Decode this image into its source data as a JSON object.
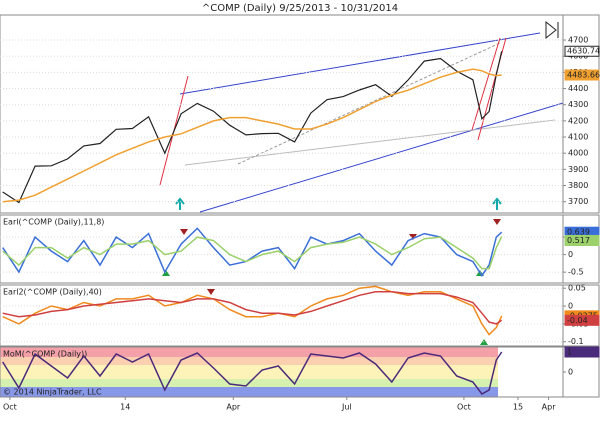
{
  "chart_data": [
    {
      "type": "line",
      "title": "^COMP (Daily)  9/25/2013 - 10/31/2014",
      "x": [
        -4,
        5,
        14,
        23,
        32,
        41,
        50,
        59,
        68,
        77,
        86,
        95,
        104,
        113,
        122,
        131,
        140,
        149,
        158,
        167,
        176,
        185,
        194,
        203,
        212,
        221,
        230,
        239,
        248,
        257,
        262,
        266,
        270,
        273
      ],
      "xlim": [
        -5.5,
        307
      ],
      "series": [
        {
          "color": "#222222",
          "values": [
            3760,
            3695,
            3920,
            3922,
            3965,
            4045,
            4060,
            4148,
            4153,
            4225,
            4000,
            4244,
            4308,
            4260,
            4173,
            4113,
            4121,
            4123,
            4070,
            4248,
            4331,
            4350,
            4391,
            4424,
            4352,
            4453,
            4570,
            4586,
            4508,
            4454,
            4213,
            4258,
            4485,
            4630.74
          ]
        },
        {
          "color": "#f0a030",
          "values": [
            3700,
            3710,
            3740,
            3790,
            3840,
            3890,
            3940,
            3990,
            4030,
            4070,
            4100,
            4120,
            4160,
            4200,
            4220,
            4220,
            4200,
            4180,
            4150,
            4150,
            4180,
            4220,
            4270,
            4320,
            4360,
            4390,
            4430,
            4470,
            4500,
            4520,
            4510,
            4490,
            4480,
            4483.66
          ]
        }
      ],
      "ylim": [
        3630,
        4855
      ],
      "yticks": [
        3700,
        3800,
        3900,
        4000,
        4100,
        4200,
        4300,
        4400,
        4500,
        4600,
        4700
      ],
      "grid": true
    },
    {
      "type": "line",
      "label": "Earl(^COMP (Daily),11,8)",
      "series": [
        {
          "color": "#3a6fd8",
          "values": [
            0.2,
            -0.5,
            0.5,
            0.1,
            -0.2,
            0.4,
            -0.3,
            0.5,
            0.2,
            0.6,
            -0.5,
            0.3,
            0.75,
            0.2,
            -0.3,
            -0.2,
            0.1,
            0.2,
            -0.4,
            0.5,
            0.3,
            0.4,
            0.6,
            0.1,
            -0.3,
            0.4,
            0.6,
            0.5,
            0.0,
            -0.2,
            -0.6,
            -0.3,
            0.5,
            0.639
          ]
        },
        {
          "color": "#9bd06a",
          "values": [
            0.1,
            -0.3,
            0.2,
            0.2,
            -0.1,
            0.2,
            0.0,
            0.3,
            0.3,
            0.4,
            0.0,
            0.1,
            0.5,
            0.4,
            0.0,
            -0.2,
            0.0,
            0.1,
            -0.2,
            0.2,
            0.3,
            0.35,
            0.5,
            0.3,
            0.0,
            0.2,
            0.45,
            0.5,
            0.2,
            -0.1,
            -0.4,
            -0.4,
            0.2,
            0.517
          ]
        }
      ],
      "ylim": [
        -0.81,
        1.13
      ],
      "yticks": [
        0.5,
        0,
        -0.5
      ],
      "grid": true
    },
    {
      "type": "line",
      "label": "Earl2(^COMP (Daily),40)",
      "series": [
        {
          "color": "#f08a1c",
          "values": [
            -0.03,
            -0.05,
            -0.02,
            0.0,
            -0.01,
            0.01,
            0.0,
            0.02,
            0.02,
            0.03,
            0.0,
            0.01,
            0.03,
            0.02,
            -0.01,
            -0.03,
            -0.03,
            -0.02,
            -0.03,
            0.0,
            0.02,
            0.03,
            0.05,
            0.055,
            0.04,
            0.03,
            0.04,
            0.04,
            0.02,
            0.0,
            -0.05,
            -0.08,
            -0.06,
            -0.0275
          ]
        },
        {
          "color": "#d04040",
          "values": [
            -0.02,
            -0.03,
            -0.025,
            -0.015,
            -0.01,
            0.0,
            0.005,
            0.01,
            0.015,
            0.02,
            0.015,
            0.01,
            0.02,
            0.02,
            0.01,
            -0.01,
            -0.02,
            -0.02,
            -0.025,
            -0.015,
            0.0,
            0.015,
            0.03,
            0.04,
            0.04,
            0.035,
            0.035,
            0.035,
            0.025,
            0.01,
            -0.02,
            -0.045,
            -0.05,
            -0.04
          ]
        }
      ],
      "ylim": [
        -0.112,
        0.059
      ],
      "yticks": [
        0.05,
        0,
        -0.05,
        -0.1
      ],
      "grid": true
    },
    {
      "type": "line",
      "label": "MoM(^COMP (Daily))",
      "annotation": "© 2014 NinjaTrader, LLC",
      "series": [
        {
          "color": "#4a2a7a",
          "values": [
            0.5,
            -0.8,
            0.9,
            0.3,
            -0.3,
            0.8,
            -0.2,
            0.9,
            0.5,
            0.9,
            -0.9,
            0.6,
            0.95,
            0.2,
            -0.6,
            -0.7,
            0.1,
            0.3,
            -0.6,
            0.9,
            0.8,
            0.7,
            0.95,
            0.4,
            -0.5,
            0.7,
            0.95,
            0.8,
            -0.2,
            -0.5,
            -1.1,
            -0.9,
            0.6,
            1.0
          ]
        }
      ],
      "ylim": [
        -1.25,
        1.25
      ],
      "yticks": [
        0
      ],
      "xticks": [
        {
          "value": 0,
          "label": "Oct"
        },
        {
          "value": 64,
          "label": "14"
        },
        {
          "value": 124,
          "label": "Apr"
        },
        {
          "value": 187,
          "label": "Jul"
        },
        {
          "value": 252,
          "label": "Oct"
        },
        {
          "value": 282,
          "label": "15"
        },
        {
          "value": 299,
          "label": "Apr"
        }
      ]
    }
  ]
}
